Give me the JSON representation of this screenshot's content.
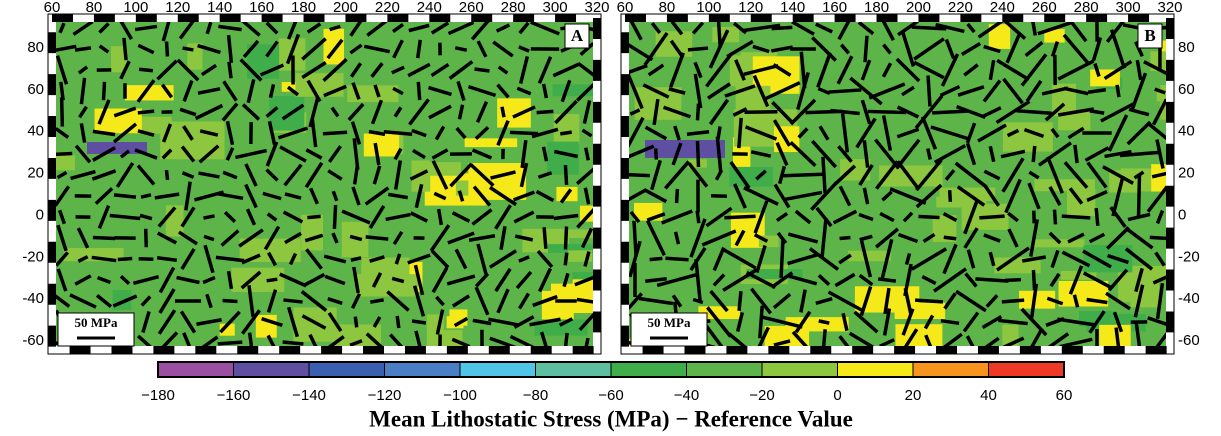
{
  "x_ticks": [
    60,
    80,
    100,
    120,
    140,
    160,
    180,
    200,
    220,
    240,
    260,
    280,
    300,
    320
  ],
  "y_ticks": [
    80,
    60,
    40,
    20,
    0,
    -20,
    -40,
    -60
  ],
  "panels": [
    {
      "label": "A",
      "scale_label": "50 MPa"
    },
    {
      "label": "B",
      "scale_label": "50 MPa"
    }
  ],
  "colorbar": {
    "ticks": [
      {
        "value": -180,
        "label": "−180"
      },
      {
        "value": -160,
        "label": "−160"
      },
      {
        "value": -140,
        "label": "−140"
      },
      {
        "value": -120,
        "label": "−120"
      },
      {
        "value": -100,
        "label": "−100"
      },
      {
        "value": -80,
        "label": "−80"
      },
      {
        "value": -60,
        "label": "−60"
      },
      {
        "value": -40,
        "label": "−40"
      },
      {
        "value": -20,
        "label": "−20"
      },
      0,
      20,
      40,
      60
    ],
    "colors": [
      "#9b4fa0",
      "#5e4fa2",
      "#3a5fb0",
      "#4a7fc6",
      "#4fc6e8",
      "#5dbf9f",
      "#3fae4a",
      "#5db54a",
      "#8dc63f",
      "#f5e91a",
      "#f7941d",
      "#ee3a24"
    ],
    "label": "Mean Lithostatic Stress (MPa) − Reference Value"
  }
}
